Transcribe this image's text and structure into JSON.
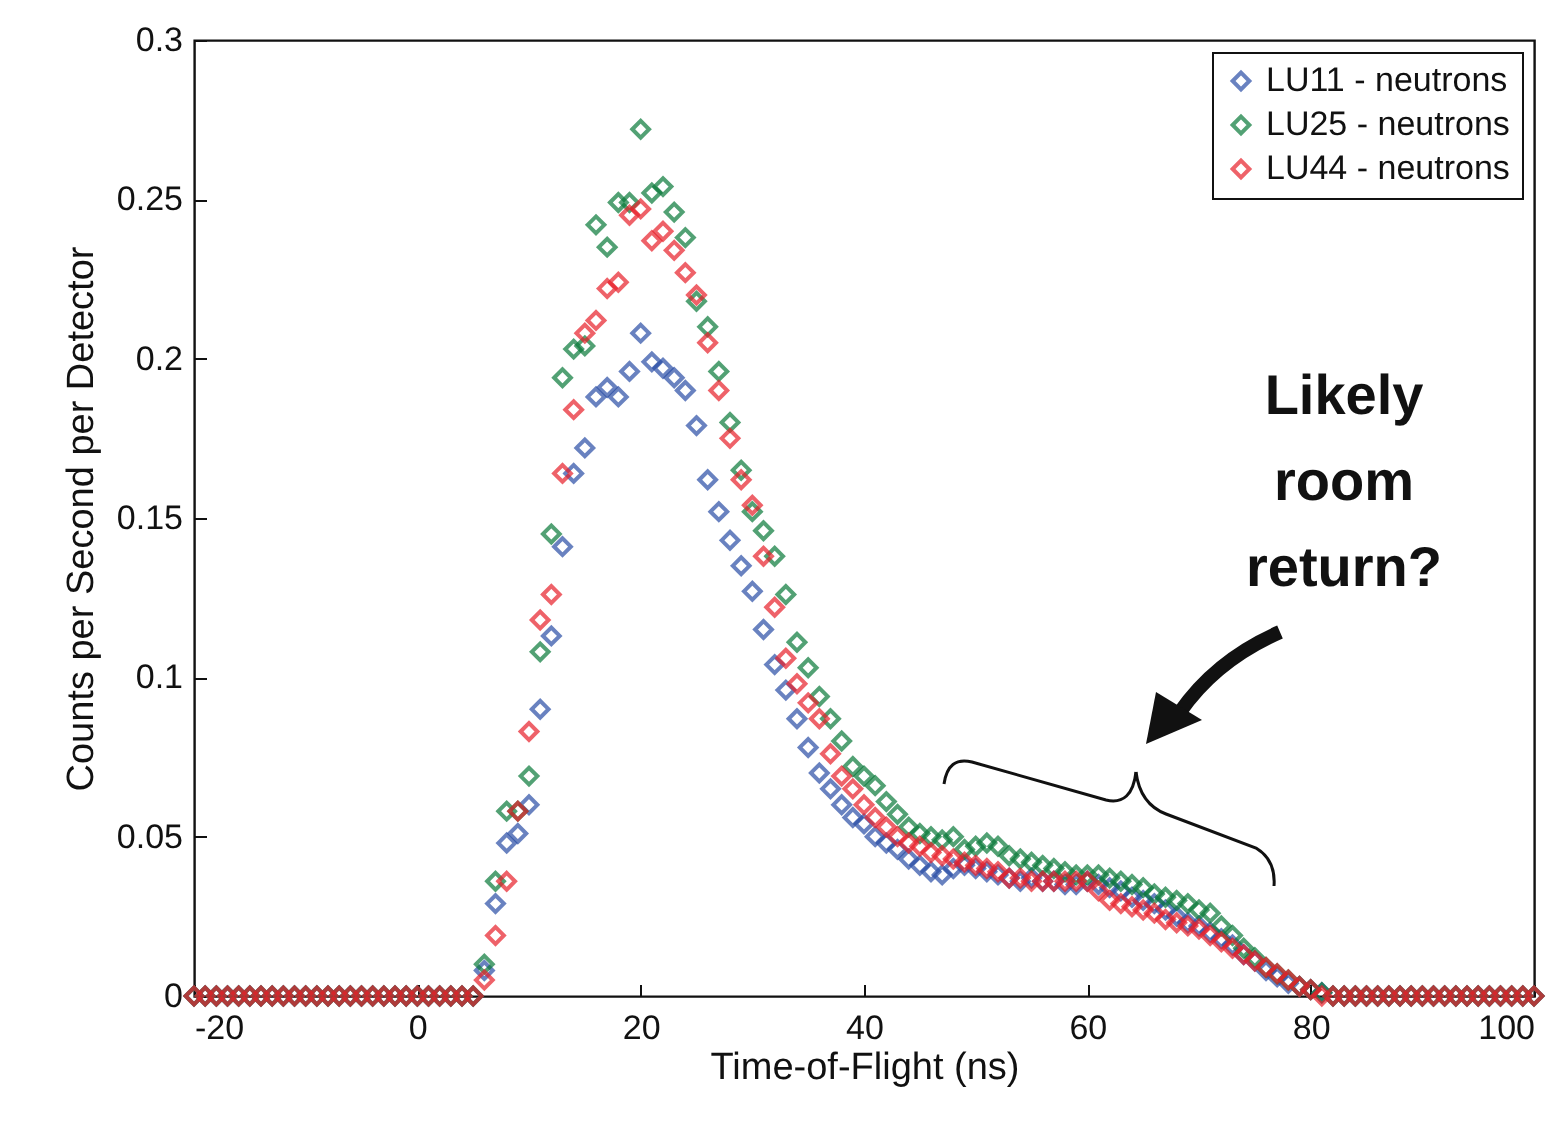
{
  "chart_data": {
    "type": "scatter",
    "xlabel": "Time-of-Flight (ns)",
    "ylabel": "Counts per Second per Detector",
    "x": [
      -20,
      -19,
      -18,
      -17,
      -16,
      -15,
      -14,
      -13,
      -12,
      -11,
      -10,
      -9,
      -8,
      -7,
      -6,
      -5,
      -4,
      -3,
      -2,
      -1,
      0,
      1,
      2,
      3,
      4,
      5,
      6,
      7,
      8,
      9,
      10,
      11,
      12,
      13,
      14,
      15,
      16,
      17,
      18,
      19,
      20,
      21,
      22,
      23,
      24,
      25,
      26,
      27,
      28,
      29,
      30,
      31,
      32,
      33,
      34,
      35,
      36,
      37,
      38,
      39,
      40,
      41,
      42,
      43,
      44,
      45,
      46,
      47,
      48,
      49,
      50,
      51,
      52,
      53,
      54,
      55,
      56,
      57,
      58,
      59,
      60,
      61,
      62,
      63,
      64,
      65,
      66,
      67,
      68,
      69,
      70,
      71,
      72,
      73,
      74,
      75,
      76,
      77,
      78,
      79,
      80,
      81,
      82,
      83,
      84,
      85,
      86,
      87,
      88,
      89,
      90,
      91,
      92,
      93,
      94,
      95,
      96,
      97,
      98,
      99,
      100
    ],
    "series": [
      {
        "name": "LU11 - neutrons",
        "color": "#2a4ea6",
        "values": [
          0,
          0,
          0,
          0,
          0,
          0,
          0,
          0,
          0,
          0,
          0,
          0,
          0,
          0,
          0,
          0,
          0,
          0,
          0,
          0,
          0,
          0,
          0,
          0,
          0,
          0,
          0.008,
          0.029,
          0.048,
          0.051,
          0.06,
          0.09,
          0.113,
          0.141,
          0.164,
          0.172,
          0.188,
          0.191,
          0.188,
          0.196,
          0.208,
          0.199,
          0.197,
          0.194,
          0.19,
          0.179,
          0.162,
          0.152,
          0.143,
          0.135,
          0.127,
          0.115,
          0.104,
          0.096,
          0.087,
          0.078,
          0.07,
          0.065,
          0.06,
          0.056,
          0.054,
          0.05,
          0.048,
          0.046,
          0.043,
          0.041,
          0.039,
          0.038,
          0.04,
          0.041,
          0.04,
          0.039,
          0.038,
          0.037,
          0.036,
          0.037,
          0.036,
          0.036,
          0.035,
          0.035,
          0.036,
          0.035,
          0.034,
          0.033,
          0.031,
          0.03,
          0.029,
          0.027,
          0.025,
          0.023,
          0.022,
          0.02,
          0.018,
          0.016,
          0.013,
          0.011,
          0.008,
          0.006,
          0.004,
          0.003,
          0.002,
          0.001,
          0,
          0,
          0,
          0,
          0,
          0,
          0,
          0,
          0,
          0,
          0,
          0,
          0,
          0,
          0,
          0,
          0,
          0,
          0
        ]
      },
      {
        "name": "LU25 - neutrons",
        "color": "#0a7a3a",
        "values": [
          0,
          0,
          0,
          0,
          0,
          0,
          0,
          0,
          0,
          0,
          0,
          0,
          0,
          0,
          0,
          0,
          0,
          0,
          0,
          0,
          0,
          0,
          0,
          0,
          0,
          0,
          0.01,
          0.036,
          0.058,
          0.058,
          0.069,
          0.108,
          0.145,
          0.194,
          0.203,
          0.204,
          0.242,
          0.235,
          0.249,
          0.249,
          0.272,
          0.252,
          0.254,
          0.246,
          0.238,
          0.218,
          0.21,
          0.196,
          0.18,
          0.165,
          0.152,
          0.146,
          0.138,
          0.126,
          0.111,
          0.103,
          0.094,
          0.087,
          0.08,
          0.072,
          0.069,
          0.066,
          0.061,
          0.057,
          0.053,
          0.051,
          0.05,
          0.049,
          0.05,
          0.046,
          0.047,
          0.048,
          0.047,
          0.044,
          0.043,
          0.042,
          0.041,
          0.04,
          0.039,
          0.038,
          0.038,
          0.038,
          0.037,
          0.036,
          0.035,
          0.034,
          0.032,
          0.031,
          0.03,
          0.029,
          0.027,
          0.026,
          0.022,
          0.019,
          0.015,
          0.012,
          0.009,
          0.007,
          0.005,
          0.003,
          0.002,
          0.001,
          0,
          0,
          0,
          0,
          0,
          0,
          0,
          0,
          0,
          0,
          0,
          0,
          0,
          0,
          0,
          0,
          0,
          0,
          0
        ]
      },
      {
        "name": "LU44 - neutrons",
        "color": "#e8202a",
        "values": [
          0,
          0,
          0,
          0,
          0,
          0,
          0,
          0,
          0,
          0,
          0,
          0,
          0,
          0,
          0,
          0,
          0,
          0,
          0,
          0,
          0,
          0,
          0,
          0,
          0,
          0,
          0.005,
          0.019,
          0.036,
          0.058,
          0.083,
          0.118,
          0.126,
          0.164,
          0.184,
          0.208,
          0.212,
          0.222,
          0.224,
          0.245,
          0.247,
          0.237,
          0.24,
          0.234,
          0.227,
          0.22,
          0.205,
          0.19,
          0.175,
          0.162,
          0.154,
          0.138,
          0.122,
          0.106,
          0.098,
          0.092,
          0.087,
          0.076,
          0.069,
          0.065,
          0.06,
          0.056,
          0.053,
          0.05,
          0.048,
          0.047,
          0.045,
          0.044,
          0.043,
          0.042,
          0.041,
          0.04,
          0.039,
          0.037,
          0.037,
          0.036,
          0.036,
          0.036,
          0.036,
          0.036,
          0.036,
          0.033,
          0.03,
          0.029,
          0.028,
          0.027,
          0.026,
          0.024,
          0.023,
          0.022,
          0.021,
          0.019,
          0.017,
          0.015,
          0.013,
          0.011,
          0.009,
          0.007,
          0.005,
          0.003,
          0.002,
          0,
          0,
          0,
          0,
          0,
          0,
          0,
          0,
          0,
          0,
          0,
          0,
          0,
          0,
          0,
          0,
          0,
          0,
          0,
          0
        ]
      }
    ],
    "xlim": [
      -20,
      100
    ],
    "xticks": [
      -20,
      0,
      20,
      40,
      60,
      80,
      100
    ],
    "ylim": [
      0,
      0.3
    ],
    "yticks": [
      0,
      0.05,
      0.1,
      0.15,
      0.2,
      0.25,
      0.3
    ],
    "grid": false,
    "legend": "top right",
    "marker": "diamond",
    "annotations": [
      "Likely room return?"
    ]
  }
}
